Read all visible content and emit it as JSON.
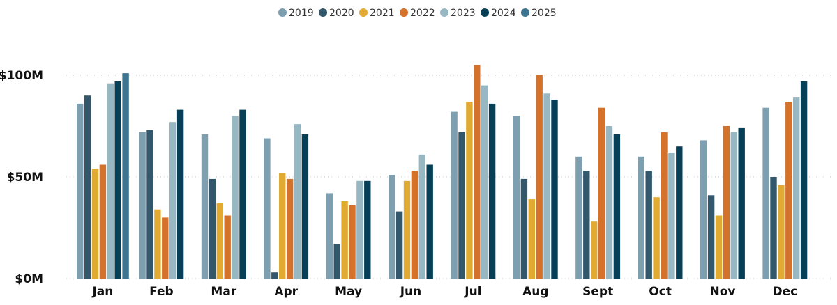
{
  "chart_data": {
    "type": "bar",
    "title": "",
    "xlabel": "",
    "ylabel": "",
    "categories": [
      "Jan",
      "Feb",
      "Mar",
      "Apr",
      "May",
      "Jun",
      "Jul",
      "Aug",
      "Sept",
      "Oct",
      "Nov",
      "Dec"
    ],
    "series": [
      {
        "name": "2019",
        "color": "#7d9fb0",
        "values": [
          86,
          72,
          71,
          69,
          42,
          51,
          82,
          80,
          60,
          60,
          68,
          84
        ]
      },
      {
        "name": "2020",
        "color": "#33586b",
        "values": [
          90,
          73,
          49,
          3,
          17,
          33,
          72,
          49,
          53,
          53,
          41,
          50
        ]
      },
      {
        "name": "2021",
        "color": "#e0aa33",
        "values": [
          54,
          34,
          37,
          52,
          38,
          48,
          87,
          39,
          28,
          40,
          31,
          46
        ]
      },
      {
        "name": "2022",
        "color": "#d4712a",
        "values": [
          56,
          30,
          31,
          49,
          36,
          53,
          105,
          100,
          84,
          72,
          75,
          87
        ]
      },
      {
        "name": "2023",
        "color": "#97b8c3",
        "values": [
          96,
          77,
          80,
          76,
          48,
          61,
          95,
          91,
          75,
          62,
          72,
          89
        ]
      },
      {
        "name": "2024",
        "color": "#063f56",
        "values": [
          97,
          83,
          83,
          71,
          48,
          56,
          86,
          88,
          71,
          65,
          74,
          97
        ]
      },
      {
        "name": "2025",
        "color": "#3d7591",
        "values": [
          101,
          null,
          null,
          null,
          null,
          null,
          null,
          null,
          null,
          null,
          null,
          null
        ]
      }
    ],
    "y_ticks": [
      "$0M",
      "$50M",
      "$100M"
    ],
    "y_tick_values": [
      0,
      50,
      100
    ],
    "ylim": [
      0,
      110
    ],
    "grid": true,
    "legend_position": "top-center"
  }
}
